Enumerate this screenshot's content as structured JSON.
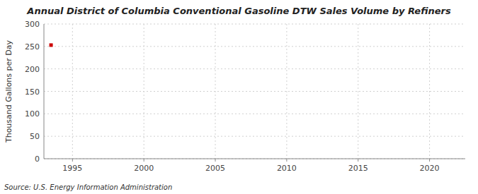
{
  "chart_data": {
    "type": "scatter",
    "title": "Annual District of Columbia Conventional Gasoline DTW Sales Volume by Refiners",
    "ylabel": "Thousand Gallons per Day",
    "source": "Source: U.S. Energy Information Administration",
    "x": [
      1993.5
    ],
    "values": [
      253
    ],
    "color": "#cc0000",
    "marker": "square",
    "xlim": [
      1993.0,
      2022.5
    ],
    "ylim": [
      0,
      300
    ],
    "xticks": [
      1995,
      2000,
      2005,
      2010,
      2015,
      2020
    ],
    "yticks": [
      0,
      50,
      100,
      150,
      200,
      250,
      300
    ],
    "grid": true
  }
}
